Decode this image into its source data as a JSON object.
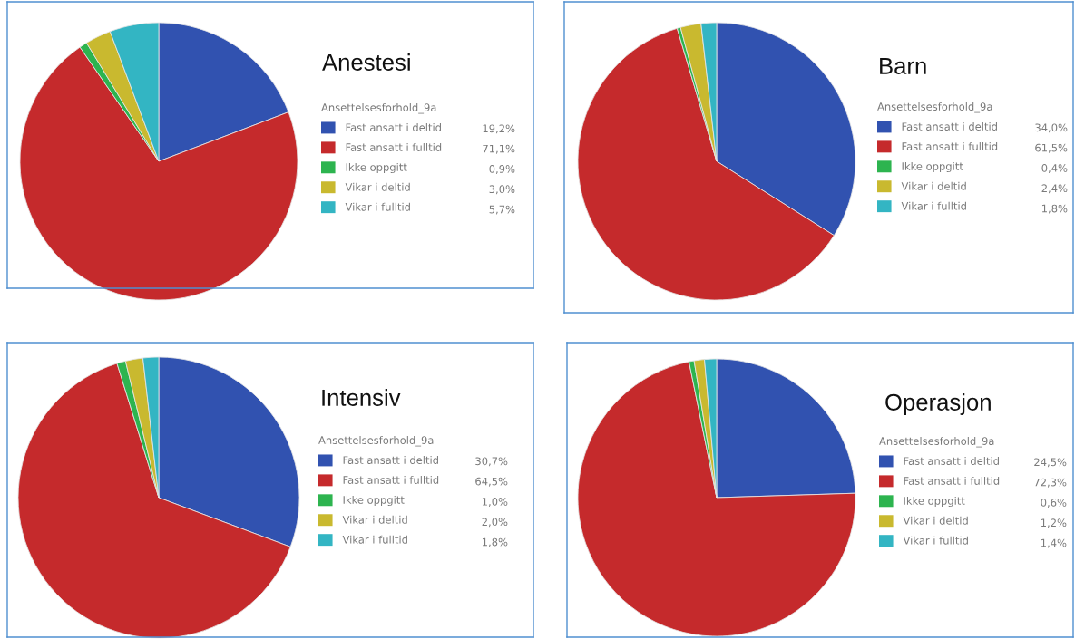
{
  "chart_data": [
    {
      "type": "pie",
      "title": "Anestesi",
      "legend_title": "Ansettelsesforhold_9a",
      "legend": "right",
      "categories": [
        "Fast ansatt i deltid",
        "Fast ansatt i fulltid",
        "Ikke oppgitt",
        "Vikar i deltid",
        "Vikar i fulltid"
      ],
      "values": [
        19.2,
        71.1,
        0.9,
        3.0,
        5.7
      ],
      "value_labels": [
        "19,2%",
        "71,1%",
        "0,9%",
        "3,0%",
        "5,7%"
      ],
      "colors": [
        "#3152b0",
        "#c52a2c",
        "#2db44f",
        "#c9b92f",
        "#33b5c3"
      ]
    },
    {
      "type": "pie",
      "title": "Barn",
      "legend_title": "Ansettelsesforhold_9a",
      "legend": "right",
      "categories": [
        "Fast ansatt i deltid",
        "Fast ansatt i fulltid",
        "Ikke oppgitt",
        "Vikar i deltid",
        "Vikar i fulltid"
      ],
      "values": [
        34.0,
        61.5,
        0.4,
        2.4,
        1.8
      ],
      "value_labels": [
        "34,0%",
        "61,5%",
        "0,4%",
        "2,4%",
        "1,8%"
      ],
      "colors": [
        "#3152b0",
        "#c52a2c",
        "#2db44f",
        "#c9b92f",
        "#33b5c3"
      ]
    },
    {
      "type": "pie",
      "title": "Intensiv",
      "legend_title": "Ansettelsesforhold_9a",
      "legend": "right",
      "categories": [
        "Fast ansatt i deltid",
        "Fast ansatt i fulltid",
        "Ikke oppgitt",
        "Vikar i deltid",
        "Vikar i fulltid"
      ],
      "values": [
        30.7,
        64.5,
        1.0,
        2.0,
        1.8
      ],
      "value_labels": [
        "30,7%",
        "64,5%",
        "1,0%",
        "2,0%",
        "1,8%"
      ],
      "colors": [
        "#3152b0",
        "#c52a2c",
        "#2db44f",
        "#c9b92f",
        "#33b5c3"
      ]
    },
    {
      "type": "pie",
      "title": "Operasjon",
      "legend_title": "Ansettelsesforhold_9a",
      "legend": "right",
      "categories": [
        "Fast ansatt i deltid",
        "Fast ansatt i fulltid",
        "Ikke oppgitt",
        "Vikar i deltid",
        "Vikar i fulltid"
      ],
      "values": [
        24.5,
        72.3,
        0.6,
        1.2,
        1.4
      ],
      "value_labels": [
        "24,5%",
        "72,3%",
        "0,6%",
        "1,2%",
        "1,4%"
      ],
      "colors": [
        "#3152b0",
        "#c52a2c",
        "#2db44f",
        "#c9b92f",
        "#33b5c3"
      ]
    }
  ]
}
